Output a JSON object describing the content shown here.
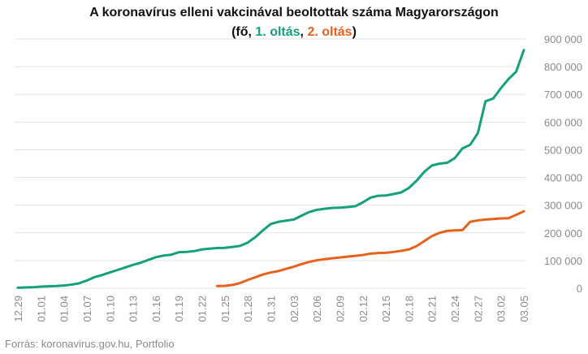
{
  "chart_data": {
    "type": "line",
    "title": "A koronavírus elleni vakcinával beoltottak száma Magyarországon",
    "subtitle_parts": [
      "(fő, ",
      ", ",
      ")"
    ],
    "source": "Forrás: koronavirus.gov.hu, Portfolio",
    "categories": [
      "12.29",
      null,
      null,
      "01.01",
      null,
      null,
      "01.04",
      null,
      null,
      "01.07",
      null,
      null,
      "01.10",
      null,
      null,
      "01.13",
      null,
      null,
      "01.16",
      null,
      null,
      "01.19",
      null,
      null,
      "01.22",
      null,
      null,
      "01.25",
      null,
      null,
      "01.28",
      null,
      null,
      "01.31",
      null,
      null,
      "02.03",
      null,
      null,
      "02.06",
      null,
      null,
      "02.09",
      null,
      null,
      "02.12",
      null,
      null,
      "02.15",
      null,
      null,
      "02.18",
      null,
      null,
      "02.21",
      null,
      null,
      "02.24",
      null,
      null,
      "02.27",
      null,
      null,
      "03.02",
      null,
      null,
      "03.05"
    ],
    "series": [
      {
        "name": "1. oltás",
        "color": "#13a07a",
        "values": [
          2000,
          3000,
          3500,
          6000,
          7000,
          8000,
          10000,
          13000,
          18000,
          28000,
          40000,
          48000,
          57000,
          66000,
          75000,
          84000,
          92000,
          102000,
          112000,
          118000,
          121000,
          130000,
          131000,
          134000,
          140000,
          143000,
          145000,
          146000,
          149000,
          153000,
          165000,
          185000,
          210000,
          232000,
          240000,
          244000,
          248000,
          262000,
          275000,
          283000,
          287000,
          290000,
          291000,
          293000,
          296000,
          310000,
          327000,
          334000,
          335000,
          340000,
          346000,
          362000,
          388000,
          420000,
          443000,
          450000,
          453000,
          470000,
          505000,
          518000,
          560000,
          675000,
          685000,
          722000,
          755000,
          782000,
          860000
        ]
      },
      {
        "name": "2. oltás",
        "color": "#e8611a",
        "values": [
          null,
          null,
          null,
          null,
          null,
          null,
          null,
          null,
          null,
          null,
          null,
          null,
          null,
          null,
          null,
          null,
          null,
          null,
          null,
          null,
          null,
          null,
          null,
          null,
          null,
          null,
          8000,
          8500,
          12000,
          19000,
          30000,
          40000,
          50000,
          57000,
          62000,
          70000,
          78000,
          87000,
          95000,
          101000,
          105000,
          108000,
          111000,
          114000,
          117000,
          120000,
          125000,
          127000,
          128000,
          131000,
          135000,
          140000,
          152000,
          170000,
          188000,
          200000,
          207000,
          209000,
          210000,
          240000,
          245000,
          248000,
          250000,
          252000,
          253000,
          265000,
          278000
        ]
      }
    ],
    "ylim": [
      0,
      900000
    ],
    "yticks": [
      0,
      {
        "value": 100000,
        "label": "100 000"
      },
      {
        "value": 200000,
        "label": "200 000"
      },
      {
        "value": 300000,
        "label": "300 000"
      },
      {
        "value": 400000,
        "label": "400 000"
      },
      {
        "value": 500000,
        "label": "500 000"
      },
      {
        "value": 600000,
        "label": "600 000"
      },
      {
        "value": 700000,
        "label": "700 000"
      },
      {
        "value": 800000,
        "label": "800 000"
      },
      {
        "value": 900000,
        "label": "900 000"
      }
    ],
    "grid": true
  }
}
